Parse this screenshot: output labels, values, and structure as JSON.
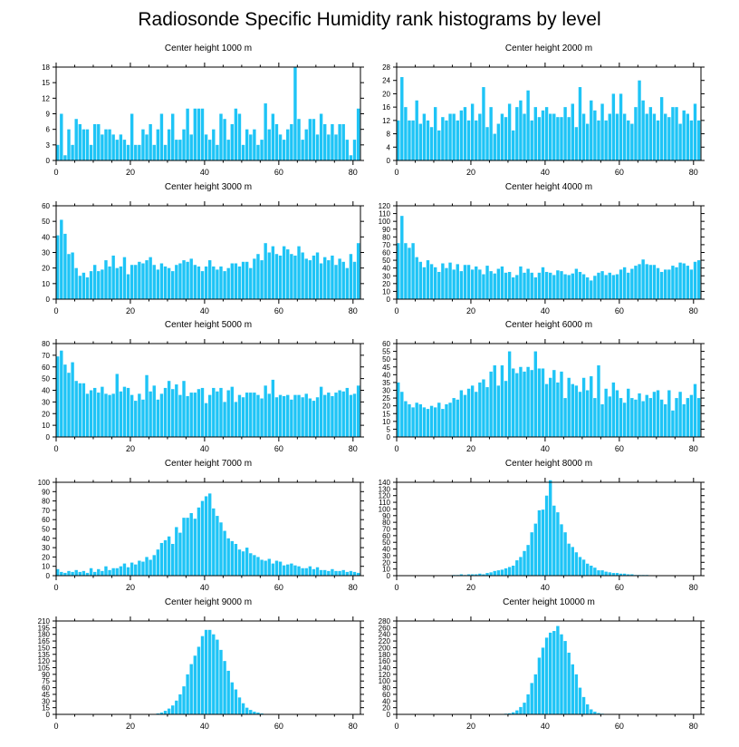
{
  "figure": {
    "title": "Radiosonde Specific Humidity rank histograms by level",
    "bar_color": "#1ec4f6",
    "axis_color": "#000000"
  },
  "chart_data": [
    {
      "type": "bar",
      "title": "Center height 1000 m",
      "x_start": 0,
      "xlim": [
        0,
        82
      ],
      "xticks": [
        0,
        20,
        40,
        60,
        80
      ],
      "ylim": [
        0,
        18
      ],
      "yticks": [
        0,
        3,
        6,
        9,
        12,
        15,
        18
      ],
      "values": [
        3,
        9,
        1,
        6,
        3,
        8,
        7,
        6,
        6,
        3,
        7,
        7,
        5,
        6,
        6,
        5,
        4,
        5,
        4,
        3,
        9,
        3,
        3,
        6,
        5,
        7,
        3,
        6,
        9,
        3,
        6,
        9,
        4,
        4,
        6,
        10,
        5,
        10,
        10,
        10,
        5,
        4,
        6,
        3,
        9,
        8,
        4,
        7,
        10,
        9,
        3,
        6,
        5,
        6,
        3,
        4,
        11,
        6,
        9,
        7,
        5,
        4,
        6,
        7,
        18,
        8,
        4,
        6,
        8,
        8,
        5,
        9,
        7,
        5,
        7,
        5,
        7,
        7,
        4,
        1,
        4,
        10
      ]
    },
    {
      "type": "bar",
      "title": "Center height 2000 m",
      "x_start": 0,
      "xlim": [
        0,
        82
      ],
      "xticks": [
        0,
        20,
        40,
        60,
        80
      ],
      "ylim": [
        0,
        28
      ],
      "yticks": [
        0,
        4,
        8,
        12,
        16,
        20,
        24,
        28
      ],
      "values": [
        12,
        25,
        16,
        12,
        12,
        18,
        11,
        14,
        12,
        10,
        16,
        9,
        13,
        12,
        14,
        14,
        12,
        15,
        16,
        12,
        17,
        12,
        14,
        22,
        10,
        16,
        8,
        11,
        14,
        13,
        17,
        9,
        16,
        18,
        14,
        21,
        12,
        16,
        13,
        15,
        16,
        14,
        14,
        13,
        13,
        16,
        13,
        17,
        10,
        22,
        14,
        11,
        18,
        15,
        12,
        17,
        12,
        14,
        20,
        14,
        20,
        14,
        12,
        11,
        16,
        24,
        18,
        14,
        16,
        14,
        12,
        19,
        14,
        13,
        16,
        16,
        11,
        15,
        14,
        12,
        17,
        12
      ]
    },
    {
      "type": "bar",
      "title": "Center height 3000 m",
      "x_start": 0,
      "xlim": [
        0,
        82
      ],
      "xticks": [
        0,
        20,
        40,
        60,
        80
      ],
      "ylim": [
        0,
        60
      ],
      "yticks": [
        0,
        10,
        20,
        30,
        40,
        50,
        60
      ],
      "values": [
        41,
        51,
        42,
        29,
        30,
        20,
        15,
        17,
        14,
        18,
        22,
        18,
        19,
        25,
        21,
        28,
        20,
        21,
        27,
        16,
        22,
        22,
        24,
        23,
        25,
        27,
        22,
        19,
        23,
        21,
        20,
        18,
        22,
        23,
        25,
        24,
        26,
        22,
        21,
        18,
        21,
        25,
        21,
        19,
        21,
        18,
        20,
        23,
        23,
        21,
        24,
        24,
        20,
        26,
        29,
        25,
        36,
        30,
        34,
        29,
        28,
        34,
        32,
        29,
        28,
        34,
        30,
        26,
        25,
        28,
        30,
        23,
        27,
        25,
        28,
        22,
        26,
        24,
        20,
        29,
        24,
        36
      ]
    },
    {
      "type": "bar",
      "title": "Center height 4000 m",
      "x_start": 0,
      "xlim": [
        0,
        82
      ],
      "xticks": [
        0,
        20,
        40,
        60,
        80
      ],
      "ylim": [
        0,
        120
      ],
      "yticks": [
        0,
        10,
        20,
        30,
        40,
        50,
        60,
        70,
        80,
        90,
        100,
        110,
        120
      ],
      "values": [
        72,
        107,
        72,
        66,
        72,
        54,
        48,
        41,
        50,
        45,
        41,
        35,
        46,
        40,
        47,
        38,
        45,
        36,
        44,
        44,
        38,
        42,
        38,
        32,
        43,
        36,
        33,
        39,
        42,
        34,
        35,
        28,
        31,
        42,
        34,
        39,
        34,
        28,
        34,
        41,
        35,
        34,
        31,
        37,
        36,
        32,
        31,
        33,
        39,
        35,
        32,
        28,
        24,
        30,
        34,
        36,
        31,
        34,
        31,
        32,
        38,
        41,
        34,
        39,
        43,
        45,
        51,
        45,
        44,
        44,
        40,
        35,
        38,
        38,
        43,
        41,
        47,
        46,
        43,
        38,
        48,
        50
      ]
    },
    {
      "type": "bar",
      "title": "Center height 5000 m",
      "x_start": 0,
      "xlim": [
        0,
        82
      ],
      "xticks": [
        0,
        20,
        40,
        60,
        80
      ],
      "ylim": [
        0,
        80
      ],
      "yticks": [
        0,
        10,
        20,
        30,
        40,
        50,
        60,
        70,
        80
      ],
      "values": [
        69,
        74,
        62,
        55,
        64,
        48,
        46,
        46,
        37,
        40,
        42,
        38,
        43,
        37,
        36,
        37,
        54,
        39,
        43,
        42,
        36,
        31,
        37,
        32,
        53,
        39,
        44,
        32,
        37,
        42,
        48,
        41,
        45,
        36,
        48,
        35,
        38,
        38,
        41,
        42,
        29,
        36,
        42,
        39,
        42,
        30,
        40,
        43,
        30,
        36,
        34,
        38,
        38,
        38,
        36,
        33,
        44,
        37,
        49,
        34,
        36,
        35,
        36,
        32,
        36,
        36,
        34,
        37,
        33,
        31,
        34,
        43,
        36,
        38,
        35,
        38,
        40,
        39,
        42,
        36,
        37,
        44
      ]
    },
    {
      "type": "bar",
      "title": "Center height 6000 m",
      "x_start": 0,
      "xlim": [
        0,
        82
      ],
      "xticks": [
        0,
        20,
        40,
        60,
        80
      ],
      "ylim": [
        0,
        60
      ],
      "yticks": [
        0,
        5,
        10,
        15,
        20,
        25,
        30,
        35,
        40,
        45,
        50,
        55,
        60
      ],
      "values": [
        35,
        29,
        23,
        21,
        19,
        22,
        21,
        19,
        18,
        20,
        19,
        22,
        18,
        21,
        22,
        25,
        24,
        30,
        27,
        31,
        33,
        29,
        35,
        37,
        32,
        42,
        46,
        33,
        46,
        36,
        55,
        44,
        41,
        45,
        42,
        45,
        43,
        55,
        44,
        44,
        34,
        38,
        43,
        35,
        42,
        25,
        38,
        34,
        33,
        29,
        38,
        30,
        39,
        25,
        46,
        21,
        31,
        26,
        35,
        30,
        25,
        22,
        31,
        25,
        24,
        28,
        23,
        27,
        25,
        29,
        30,
        24,
        21,
        30,
        17,
        25,
        29,
        21,
        25,
        27,
        34,
        25
      ]
    },
    {
      "type": "bar",
      "title": "Center height 7000 m",
      "x_start": 0,
      "xlim": [
        0,
        82
      ],
      "xticks": [
        0,
        20,
        40,
        60,
        80
      ],
      "ylim": [
        0,
        100
      ],
      "yticks": [
        0,
        10,
        20,
        30,
        40,
        50,
        60,
        70,
        80,
        90,
        100
      ],
      "values": [
        7,
        4,
        3,
        5,
        4,
        6,
        4,
        5,
        3,
        8,
        4,
        7,
        5,
        10,
        6,
        8,
        8,
        10,
        13,
        9,
        14,
        12,
        16,
        15,
        20,
        17,
        22,
        28,
        35,
        38,
        42,
        34,
        52,
        46,
        62,
        62,
        67,
        61,
        73,
        80,
        85,
        88,
        72,
        64,
        57,
        48,
        40,
        37,
        34,
        28,
        26,
        30,
        24,
        22,
        20,
        17,
        16,
        18,
        13,
        16,
        15,
        11,
        12,
        13,
        11,
        10,
        8,
        8,
        10,
        7,
        9,
        6,
        6,
        5,
        7,
        5,
        5,
        6,
        4,
        5,
        4,
        3
      ]
    },
    {
      "type": "bar",
      "title": "Center height 8000 m",
      "x_start": 0,
      "xlim": [
        0,
        82
      ],
      "xticks": [
        0,
        20,
        40,
        60,
        80
      ],
      "ylim": [
        0,
        140
      ],
      "yticks": [
        0,
        10,
        20,
        30,
        40,
        50,
        60,
        70,
        80,
        90,
        100,
        110,
        120,
        130,
        140
      ],
      "values": [
        0,
        0,
        0,
        0,
        0,
        0,
        0,
        0,
        0,
        0,
        0,
        0,
        0,
        0,
        0,
        1,
        1,
        2,
        1,
        2,
        2,
        2,
        3,
        2,
        4,
        5,
        7,
        8,
        9,
        11,
        13,
        15,
        23,
        28,
        37,
        46,
        65,
        78,
        98,
        99,
        120,
        143,
        105,
        95,
        77,
        65,
        48,
        43,
        35,
        28,
        24,
        18,
        15,
        12,
        8,
        8,
        6,
        5,
        4,
        4,
        3,
        3,
        2,
        2,
        1,
        1,
        1,
        1,
        0,
        0,
        0,
        0,
        0,
        0,
        0,
        0,
        0,
        0,
        0,
        0,
        0,
        0
      ]
    },
    {
      "type": "bar",
      "title": "Center height 9000 m",
      "x_start": 0,
      "xlim": [
        0,
        82
      ],
      "xticks": [
        0,
        20,
        40,
        60,
        80
      ],
      "ylim": [
        0,
        210
      ],
      "yticks": [
        0,
        15,
        30,
        45,
        60,
        75,
        90,
        105,
        120,
        135,
        150,
        165,
        180,
        195,
        210
      ],
      "values": [
        0,
        0,
        0,
        0,
        0,
        0,
        0,
        0,
        0,
        0,
        0,
        0,
        0,
        0,
        0,
        0,
        0,
        0,
        0,
        0,
        0,
        0,
        0,
        0,
        0,
        0,
        1,
        2,
        4,
        8,
        13,
        20,
        31,
        45,
        63,
        90,
        113,
        132,
        152,
        176,
        190,
        190,
        180,
        168,
        145,
        120,
        98,
        72,
        56,
        38,
        25,
        15,
        10,
        6,
        4,
        2,
        1,
        1,
        0,
        0,
        0,
        0,
        0,
        0,
        0,
        0,
        0,
        0,
        0,
        0,
        0,
        0,
        0,
        0,
        0,
        0,
        0,
        0,
        0,
        0,
        0,
        0
      ]
    },
    {
      "type": "bar",
      "title": "Center height 10000 m",
      "x_start": 0,
      "xlim": [
        0,
        82
      ],
      "xticks": [
        0,
        20,
        40,
        60,
        80
      ],
      "ylim": [
        0,
        280
      ],
      "yticks": [
        0,
        20,
        40,
        60,
        80,
        100,
        120,
        140,
        160,
        180,
        200,
        220,
        240,
        260,
        280
      ],
      "values": [
        0,
        0,
        0,
        0,
        0,
        0,
        0,
        0,
        0,
        0,
        0,
        0,
        0,
        0,
        0,
        0,
        0,
        0,
        0,
        0,
        0,
        0,
        0,
        0,
        0,
        0,
        0,
        0,
        1,
        2,
        3,
        6,
        12,
        22,
        35,
        60,
        94,
        120,
        170,
        200,
        230,
        245,
        250,
        265,
        240,
        220,
        185,
        150,
        120,
        80,
        52,
        30,
        15,
        8,
        4,
        2,
        1,
        0,
        0,
        0,
        0,
        0,
        0,
        0,
        0,
        0,
        0,
        0,
        0,
        0,
        0,
        0,
        0,
        0,
        0,
        0,
        0,
        0,
        0,
        0,
        0,
        0
      ]
    }
  ]
}
